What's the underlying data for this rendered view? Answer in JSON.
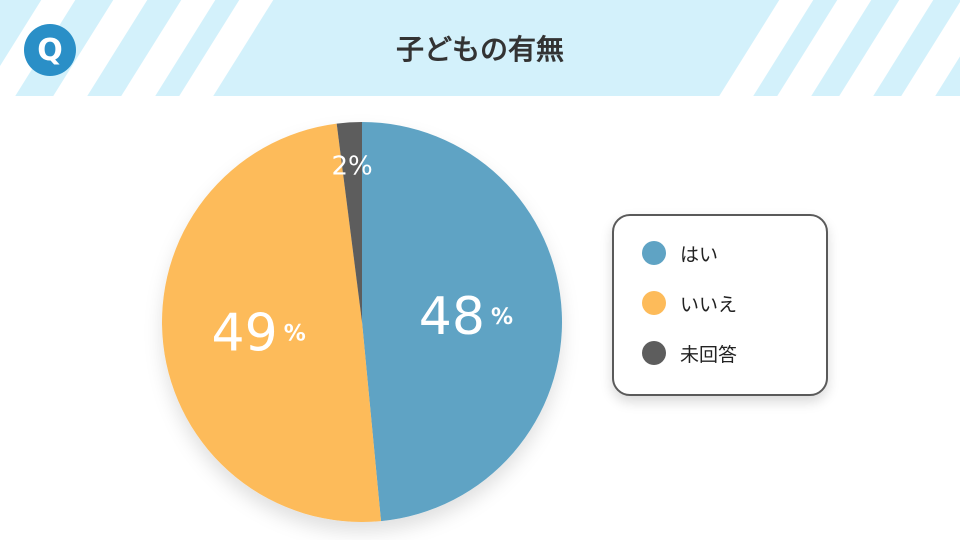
{
  "header": {
    "badge": "Q",
    "title": "子どもの有無"
  },
  "chart_data": {
    "type": "pie",
    "title": "子どもの有無",
    "categories": [
      "はい",
      "いいえ",
      "未回答"
    ],
    "values": [
      48,
      49,
      2
    ],
    "value_labels": [
      "48",
      "49",
      "2"
    ],
    "unit": "%",
    "colors": [
      "#5fa3c4",
      "#fdbb5a",
      "#5d5d5d"
    ],
    "start_angle_deg": 0,
    "direction": "clockwise",
    "legend_position": "right"
  }
}
